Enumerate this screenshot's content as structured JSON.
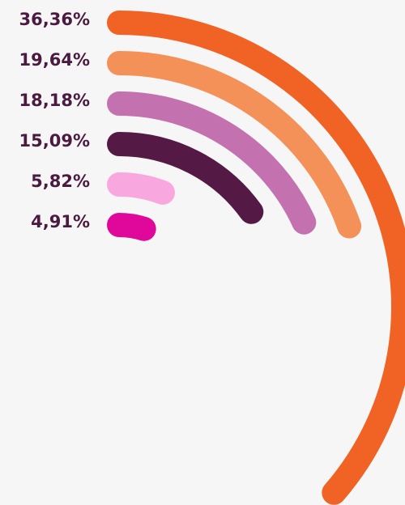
{
  "chart_data": {
    "type": "radial_bar",
    "values": [
      36.36,
      19.64,
      18.18,
      15.09,
      5.82,
      4.91
    ],
    "value_labels": [
      "36,36%",
      "19,64%",
      "18,18%",
      "15,09%",
      "5,82%",
      "4,91%"
    ],
    "colors": [
      "#f06325",
      "#f39158",
      "#c471b0",
      "#541944",
      "#f9a8df",
      "#e0089a"
    ]
  }
}
